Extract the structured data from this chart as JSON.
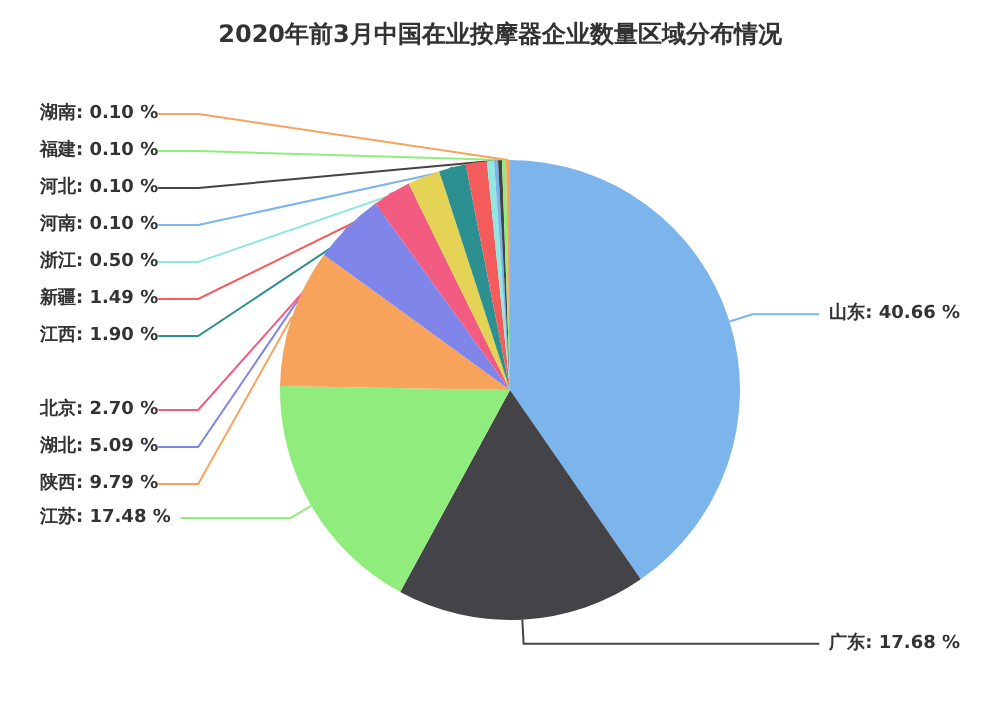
{
  "chart_data": {
    "type": "pie",
    "title": "2020年前3月中国在业按摩器企业数量区域分布情况",
    "categories": [
      "山东",
      "广东",
      "江苏",
      "陕西",
      "湖北",
      "北京",
      null,
      "江西",
      "新疆",
      "浙江",
      "河南",
      "河北",
      "福建",
      "湖南"
    ],
    "values": [
      40.66,
      17.68,
      17.48,
      9.79,
      5.09,
      2.7,
      2.31,
      1.9,
      1.49,
      0.5,
      0.1,
      0.1,
      0.1,
      0.1
    ],
    "value_labels": [
      "40.66 %",
      "17.68 %",
      "17.48 %",
      "9.79 %",
      "5.09 %",
      "2.70 %",
      null,
      "1.90 %",
      "1.49 %",
      "0.50 %",
      "0.10 %",
      "0.10 %",
      "0.10 %",
      "0.10 %"
    ],
    "colors": [
      "#7cb5ec",
      "#434348",
      "#90ed7d",
      "#f7a35c",
      "#8085e9",
      "#f15c80",
      "#e4d354",
      "#2b908f",
      "#f45b5b",
      "#91e8e1",
      "#7cb5ec",
      "#434348",
      "#90ed7d",
      "#f7a35c"
    ],
    "legend": false
  }
}
